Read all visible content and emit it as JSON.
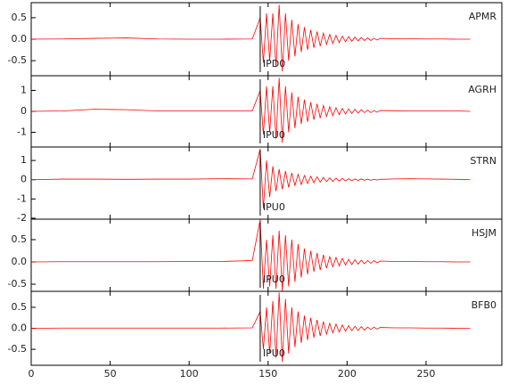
{
  "chart_data": [
    {
      "type": "line",
      "title": "APMR",
      "pick": {
        "time": 145,
        "label": "IPD0"
      },
      "color": "#ff0000",
      "x": [
        0,
        20,
        40,
        60,
        80,
        100,
        120,
        140,
        145,
        147,
        149,
        151,
        153,
        155,
        157,
        159,
        161,
        163,
        165,
        167,
        169,
        171,
        173,
        175,
        177,
        179,
        181,
        183,
        185,
        187,
        189,
        191,
        193,
        195,
        197,
        199,
        201,
        203,
        205,
        207,
        209,
        211,
        213,
        215,
        217,
        219,
        221,
        230,
        240,
        250,
        260,
        270,
        278
      ],
      "values": [
        0,
        0.005,
        0.02,
        0.03,
        0.005,
        0,
        0,
        0.005,
        0.5,
        -0.55,
        0.6,
        -0.5,
        0.6,
        -0.65,
        0.8,
        -0.75,
        0.6,
        -0.5,
        0.45,
        -0.4,
        0.35,
        -0.3,
        0.28,
        -0.25,
        0.22,
        -0.2,
        0.18,
        -0.16,
        0.14,
        -0.12,
        0.11,
        -0.1,
        0.09,
        -0.08,
        0.07,
        -0.06,
        0.06,
        -0.05,
        0.05,
        -0.04,
        0.04,
        -0.03,
        0.03,
        -0.03,
        0.02,
        -0.02,
        0.02,
        0.01,
        0.01,
        0.005,
        0.005,
        0,
        0
      ],
      "xlim": [
        0,
        298
      ],
      "xticks": [
        0,
        50,
        100,
        150,
        200,
        250
      ],
      "ylim": [
        -0.85,
        0.85
      ],
      "yticks": [
        0.5,
        {
          "value": 0,
          "label": "0.0"
        },
        -0.5
      ]
    },
    {
      "type": "line",
      "title": "AGRH",
      "pick": {
        "time": 145,
        "label": "IPU0"
      },
      "color": "#ff0000",
      "x": [
        0,
        20,
        40,
        60,
        80,
        100,
        120,
        140,
        145,
        147,
        149,
        151,
        153,
        155,
        157,
        159,
        161,
        163,
        165,
        167,
        169,
        171,
        173,
        175,
        177,
        179,
        181,
        183,
        185,
        187,
        189,
        191,
        193,
        195,
        197,
        199,
        201,
        203,
        205,
        207,
        209,
        211,
        213,
        215,
        217,
        219,
        221,
        230,
        240,
        250,
        260,
        270,
        278
      ],
      "values": [
        0,
        0.02,
        0.1,
        0.08,
        0.02,
        0.02,
        0.02,
        0.02,
        1.0,
        -1.1,
        1.2,
        -1.0,
        1.2,
        -1.3,
        1.6,
        -1.5,
        1.2,
        -1.0,
        0.9,
        -0.8,
        0.7,
        -0.6,
        0.56,
        -0.5,
        0.44,
        -0.4,
        0.36,
        -0.32,
        0.28,
        -0.24,
        0.22,
        -0.2,
        0.18,
        -0.16,
        0.14,
        -0.12,
        0.12,
        -0.1,
        0.1,
        -0.08,
        0.08,
        -0.06,
        0.06,
        -0.06,
        0.04,
        -0.04,
        0.04,
        0.03,
        0.02,
        0.02,
        0.02,
        0.02,
        0
      ],
      "xlim": [
        0,
        298
      ],
      "xticks": [
        0,
        50,
        100,
        150,
        200,
        250
      ],
      "ylim": [
        -1.7,
        1.7
      ],
      "yticks": [
        1,
        0,
        -1
      ]
    },
    {
      "type": "line",
      "title": "STRN",
      "pick": {
        "time": 145,
        "label": "IPU0"
      },
      "color": "#ff0000",
      "x": [
        0,
        20,
        40,
        60,
        80,
        100,
        120,
        140,
        145,
        147,
        149,
        151,
        153,
        155,
        157,
        159,
        161,
        163,
        165,
        167,
        169,
        171,
        173,
        175,
        177,
        179,
        181,
        183,
        185,
        187,
        189,
        191,
        193,
        195,
        197,
        199,
        201,
        203,
        205,
        207,
        209,
        211,
        213,
        215,
        217,
        219,
        221,
        230,
        240,
        250,
        260,
        270,
        278
      ],
      "values": [
        0,
        0.03,
        0.03,
        0.02,
        0.03,
        0.03,
        0.05,
        0.04,
        1.6,
        -1.5,
        1.0,
        -0.9,
        0.7,
        -0.6,
        0.55,
        -0.5,
        0.45,
        -0.4,
        0.35,
        -0.3,
        0.28,
        -0.25,
        0.22,
        -0.2,
        0.18,
        -0.16,
        0.15,
        -0.13,
        0.12,
        -0.1,
        0.1,
        -0.09,
        0.08,
        -0.07,
        0.07,
        -0.06,
        0.05,
        -0.05,
        0.04,
        -0.04,
        0.04,
        -0.03,
        0.03,
        -0.03,
        0.02,
        -0.02,
        0.02,
        0.04,
        0.05,
        0.04,
        0.03,
        0.02,
        0
      ],
      "xlim": [
        0,
        298
      ],
      "xticks": [
        0,
        50,
        100,
        150,
        200,
        250
      ],
      "ylim": [
        -2.05,
        1.7
      ],
      "yticks": [
        1,
        0,
        -1,
        -2
      ]
    },
    {
      "type": "line",
      "title": "HSJM",
      "pick": {
        "time": 145,
        "label": "IPU0"
      },
      "color": "#ff0000",
      "x": [
        0,
        20,
        40,
        60,
        80,
        100,
        120,
        140,
        145,
        147,
        149,
        151,
        153,
        155,
        157,
        159,
        161,
        163,
        165,
        167,
        169,
        171,
        173,
        175,
        177,
        179,
        181,
        183,
        185,
        187,
        189,
        191,
        193,
        195,
        197,
        199,
        201,
        203,
        205,
        207,
        209,
        211,
        213,
        215,
        217,
        219,
        221,
        230,
        240,
        250,
        260,
        270,
        278
      ],
      "values": [
        0,
        0.005,
        0.005,
        0.005,
        0.005,
        0.01,
        0.01,
        0.03,
        0.95,
        -0.6,
        0.5,
        -0.55,
        0.6,
        -0.6,
        0.7,
        -0.65,
        0.6,
        -0.55,
        0.5,
        -0.45,
        0.4,
        -0.35,
        0.3,
        -0.28,
        0.25,
        -0.22,
        0.2,
        -0.18,
        0.16,
        -0.14,
        0.12,
        -0.11,
        0.1,
        -0.09,
        0.08,
        -0.07,
        0.06,
        -0.06,
        0.05,
        -0.05,
        0.04,
        -0.04,
        0.03,
        -0.03,
        0.03,
        -0.02,
        0.02,
        0.01,
        0.01,
        0.005,
        0.005,
        0,
        0
      ],
      "xlim": [
        0,
        298
      ],
      "xticks": [
        0,
        50,
        100,
        150,
        200,
        250
      ],
      "ylim": [
        -0.66,
        0.96
      ],
      "yticks": [
        0.5,
        {
          "value": 0,
          "label": "0.0"
        },
        -0.5
      ]
    },
    {
      "type": "line",
      "title": "BFB0",
      "pick": {
        "time": 145,
        "label": "IPU0"
      },
      "color": "#ff0000",
      "x": [
        0,
        20,
        40,
        60,
        80,
        100,
        120,
        140,
        145,
        147,
        149,
        151,
        153,
        155,
        157,
        159,
        161,
        163,
        165,
        167,
        169,
        171,
        173,
        175,
        177,
        179,
        181,
        183,
        185,
        187,
        189,
        191,
        193,
        195,
        197,
        199,
        201,
        203,
        205,
        207,
        209,
        211,
        213,
        215,
        217,
        219,
        221,
        230,
        240,
        250,
        260,
        270,
        278
      ],
      "values": [
        0,
        0.005,
        0.005,
        0.005,
        0.005,
        0.005,
        0.005,
        0.01,
        0.4,
        -0.5,
        0.5,
        -0.6,
        0.65,
        -0.7,
        0.85,
        -0.8,
        0.7,
        -0.6,
        0.5,
        -0.45,
        0.4,
        -0.35,
        0.3,
        -0.28,
        0.25,
        -0.22,
        0.2,
        -0.18,
        0.16,
        -0.14,
        0.12,
        -0.11,
        0.1,
        -0.09,
        0.08,
        -0.07,
        0.06,
        -0.06,
        0.05,
        -0.05,
        0.04,
        -0.04,
        0.03,
        -0.03,
        0.03,
        -0.02,
        0.02,
        0.01,
        0.01,
        0.005,
        0.005,
        0,
        0
      ],
      "xlim": [
        0,
        298
      ],
      "xticks": [
        0,
        50,
        100,
        150,
        200,
        250
      ],
      "ylim": [
        -0.88,
        0.88
      ],
      "yticks": [
        0.5,
        {
          "value": 0,
          "label": "0.0"
        },
        -0.5
      ]
    }
  ]
}
